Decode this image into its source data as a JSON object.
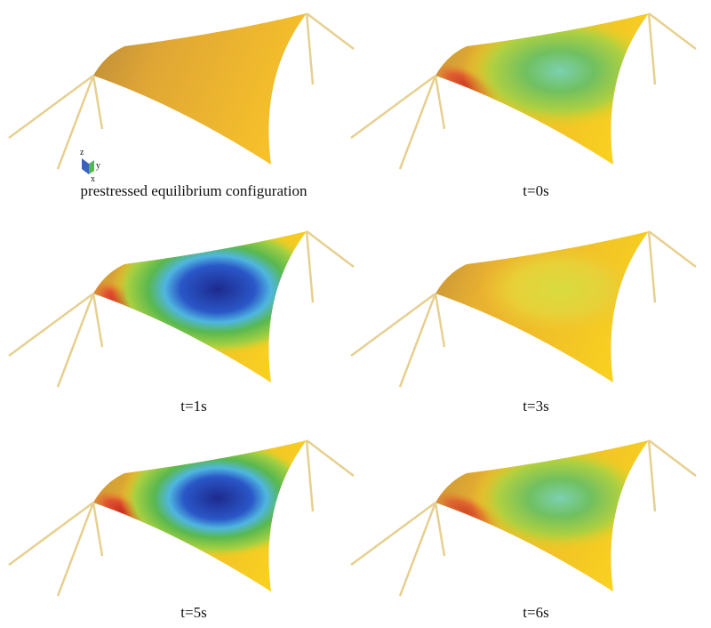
{
  "panels": [
    {
      "caption": "prestressed equilibrium configuration"
    },
    {
      "caption": "t=0s"
    },
    {
      "caption": "t=1s"
    },
    {
      "caption": "t=3s"
    },
    {
      "caption": "t=5s"
    },
    {
      "caption": "t=6s"
    }
  ],
  "axes": {
    "z": "z",
    "y": "y",
    "x": "x"
  }
}
